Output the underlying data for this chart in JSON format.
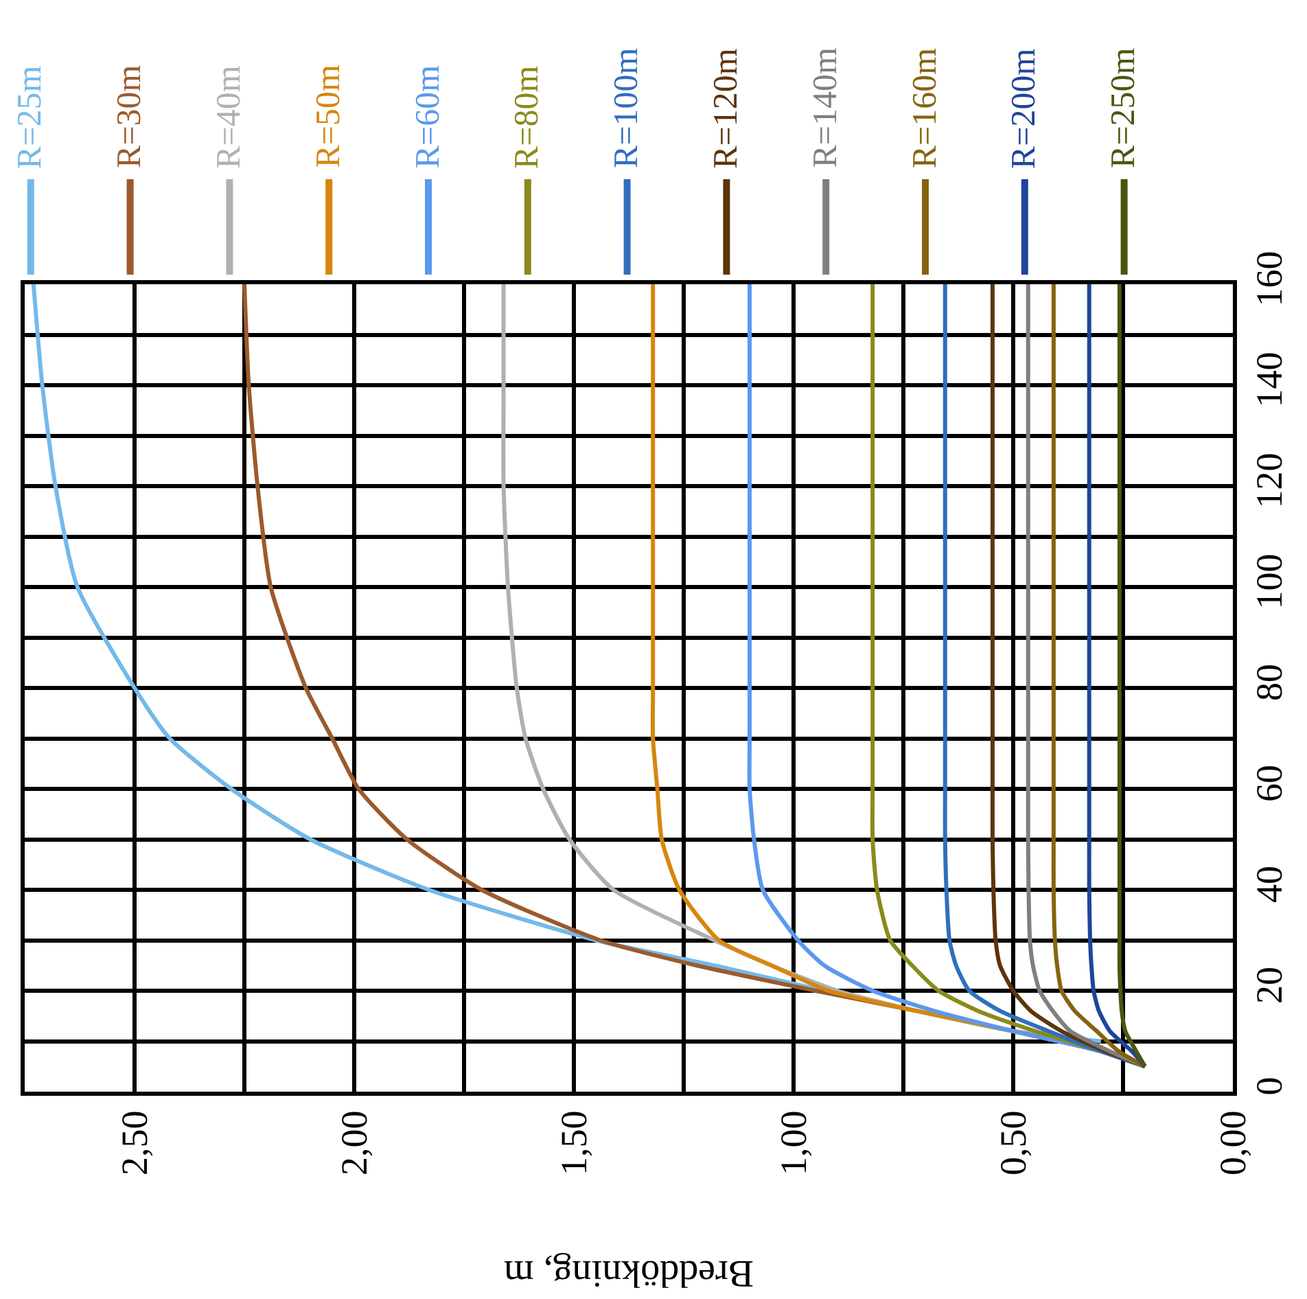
{
  "chart_data": {
    "type": "line",
    "xlabel": "Breddökning, m",
    "series": [
      {
        "name": "R=25m",
        "color": "#74b9ea",
        "x": [
          0.3,
          0.5,
          0.72,
          0.93,
          1.18,
          1.45,
          1.83,
          2.1,
          2.28,
          2.42,
          2.5,
          2.63,
          2.68,
          2.71,
          2.73
        ],
        "values": [
          10,
          12,
          16,
          20,
          25,
          30,
          40,
          50,
          60,
          70,
          80,
          100,
          120,
          140,
          160
        ]
      },
      {
        "name": "R=30m",
        "color": "#9c5a2c",
        "x": [
          0.2,
          0.3,
          0.5,
          0.72,
          0.95,
          1.22,
          1.44,
          1.71,
          1.88,
          1.99,
          2.05,
          2.11,
          2.19,
          2.22,
          2.24,
          2.25
        ],
        "values": [
          5,
          8,
          12,
          16,
          20,
          25,
          30,
          40,
          50,
          60,
          70,
          80,
          100,
          120,
          140,
          160
        ]
      },
      {
        "name": "R=40m",
        "color": "#b0b0b0",
        "x": [
          0.2,
          0.3,
          0.5,
          0.72,
          0.9,
          1.05,
          1.18,
          1.41,
          1.51,
          1.57,
          1.61,
          1.63,
          1.65,
          1.66,
          1.66,
          1.66
        ],
        "values": [
          5,
          8,
          12,
          16,
          20,
          25,
          30,
          40,
          50,
          60,
          70,
          80,
          100,
          120,
          140,
          160
        ]
      },
      {
        "name": "R=50m",
        "color": "#d6860f",
        "x": [
          0.2,
          0.3,
          0.5,
          0.72,
          0.92,
          1.05,
          1.17,
          1.26,
          1.3,
          1.31,
          1.32,
          1.32,
          1.32,
          1.32,
          1.32,
          1.32
        ],
        "values": [
          5,
          8,
          12,
          16,
          20,
          25,
          30,
          40,
          50,
          60,
          70,
          80,
          100,
          120,
          140,
          160
        ]
      },
      {
        "name": "R=60m",
        "color": "#5b98ef",
        "x": [
          0.2,
          0.3,
          0.5,
          0.68,
          0.82,
          0.93,
          0.99,
          1.07,
          1.09,
          1.1,
          1.1,
          1.1,
          1.1,
          1.1,
          1.1,
          1.1
        ],
        "values": [
          5,
          8,
          12,
          16,
          20,
          25,
          30,
          40,
          50,
          60,
          70,
          80,
          100,
          120,
          140,
          160
        ]
      },
      {
        "name": "R=80m",
        "color": "#8a8a1c",
        "x": [
          0.2,
          0.3,
          0.45,
          0.58,
          0.67,
          0.73,
          0.78,
          0.81,
          0.82,
          0.82,
          0.82,
          0.82,
          0.82,
          0.82,
          0.82,
          0.82
        ],
        "values": [
          5,
          8,
          12,
          16,
          20,
          25,
          30,
          40,
          50,
          60,
          70,
          80,
          100,
          120,
          140,
          160
        ]
      },
      {
        "name": "R=100m",
        "color": "#2f6fbd",
        "x": [
          0.2,
          0.3,
          0.42,
          0.53,
          0.6,
          0.63,
          0.645,
          0.652,
          0.655,
          0.655,
          0.655,
          0.655,
          0.655,
          0.655,
          0.655,
          0.655
        ],
        "values": [
          5,
          8,
          12,
          16,
          20,
          25,
          30,
          40,
          50,
          60,
          70,
          80,
          100,
          120,
          140,
          160
        ]
      },
      {
        "name": "R=120m",
        "color": "#5e340a",
        "x": [
          0.2,
          0.29,
          0.39,
          0.46,
          0.5,
          0.53,
          0.54,
          0.545,
          0.547,
          0.547,
          0.547,
          0.547,
          0.547,
          0.547,
          0.547,
          0.547
        ],
        "values": [
          5,
          8,
          12,
          16,
          20,
          25,
          30,
          40,
          50,
          60,
          70,
          80,
          100,
          120,
          140,
          160
        ]
      },
      {
        "name": "R=140m",
        "color": "#7f7f7f",
        "x": [
          0.2,
          0.28,
          0.37,
          0.41,
          0.44,
          0.455,
          0.462,
          0.465,
          0.466,
          0.466,
          0.466,
          0.466,
          0.466,
          0.466,
          0.466,
          0.466
        ],
        "values": [
          5,
          8,
          12,
          16,
          20,
          25,
          30,
          40,
          50,
          60,
          70,
          80,
          100,
          120,
          140,
          160
        ]
      },
      {
        "name": "R=160m",
        "color": "#86630f",
        "x": [
          0.2,
          0.26,
          0.31,
          0.36,
          0.39,
          0.4,
          0.405,
          0.408,
          0.408,
          0.408,
          0.408,
          0.408,
          0.408,
          0.408,
          0.408,
          0.408
        ],
        "values": [
          5,
          8,
          12,
          16,
          20,
          25,
          30,
          40,
          50,
          60,
          70,
          80,
          100,
          120,
          140,
          160
        ]
      },
      {
        "name": "R=200m",
        "color": "#1f449c",
        "x": [
          0.2,
          0.23,
          0.28,
          0.305,
          0.317,
          0.322,
          0.325,
          0.327,
          0.327,
          0.327,
          0.327,
          0.327,
          0.327,
          0.327,
          0.327,
          0.327
        ],
        "values": [
          5,
          8,
          12,
          16,
          20,
          25,
          30,
          40,
          50,
          60,
          70,
          80,
          100,
          120,
          140,
          160
        ]
      },
      {
        "name": "R=250m",
        "color": "#4e5410",
        "x": [
          0.2,
          0.22,
          0.245,
          0.253,
          0.256,
          0.258,
          0.258,
          0.258,
          0.258,
          0.258,
          0.258,
          0.258,
          0.258,
          0.258,
          0.258,
          0.258
        ],
        "values": [
          5,
          8,
          12,
          16,
          20,
          25,
          30,
          40,
          50,
          60,
          70,
          80,
          100,
          120,
          140,
          160
        ]
      }
    ],
    "ylim": [
      0,
      160
    ],
    "yticks": [
      0,
      {
        "value": 10,
        "label": null
      },
      20,
      {
        "value": 30,
        "label": null
      },
      40,
      {
        "value": 50,
        "label": null
      },
      60,
      {
        "value": 70,
        "label": null
      },
      80,
      {
        "value": 90,
        "label": null
      },
      100,
      {
        "value": 110,
        "label": null
      },
      120,
      {
        "value": 130,
        "label": null
      },
      140,
      {
        "value": 150,
        "label": null
      },
      160
    ],
    "xlim": [
      2.75,
      0
    ],
    "xticks": [
      {
        "value": 2.5,
        "label": "2,50"
      },
      {
        "value": 2.25,
        "label": null
      },
      {
        "value": 2.0,
        "label": "2,00"
      },
      {
        "value": 1.75,
        "label": null
      },
      {
        "value": 1.5,
        "label": "1,50"
      },
      {
        "value": 1.25,
        "label": null
      },
      {
        "value": 1.0,
        "label": "1,00"
      },
      {
        "value": 0.75,
        "label": null
      },
      {
        "value": 0.5,
        "label": "0,50"
      },
      {
        "value": 0.25,
        "label": null
      },
      {
        "value": 0,
        "label": "0,00"
      }
    ],
    "grid": true,
    "legend": "top"
  }
}
